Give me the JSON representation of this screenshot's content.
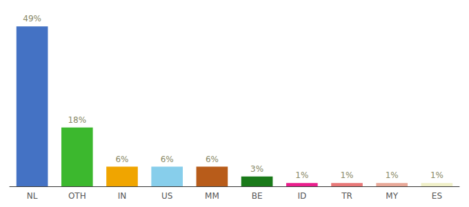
{
  "chart_data": {
    "type": "bar",
    "categories": [
      "NL",
      "OTH",
      "IN",
      "US",
      "MM",
      "BE",
      "ID",
      "TR",
      "MY",
      "ES"
    ],
    "values": [
      49,
      18,
      6,
      6,
      6,
      3,
      1,
      1,
      1,
      1
    ],
    "value_labels": [
      "49%",
      "18%",
      "6%",
      "6%",
      "6%",
      "3%",
      "1%",
      "1%",
      "1%",
      "1%"
    ],
    "colors": [
      "#4472c4",
      "#3cb82e",
      "#f0a500",
      "#87ceeb",
      "#b85c1a",
      "#1a7a1a",
      "#e91e8c",
      "#e87878",
      "#e8a898",
      "#f0f0c8"
    ],
    "ylim": [
      0,
      52
    ],
    "data_labels": true,
    "tick_labels": "x",
    "grid": false
  }
}
